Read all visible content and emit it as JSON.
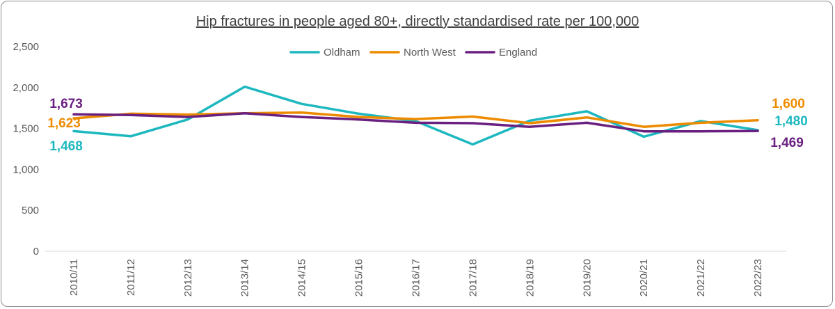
{
  "chart_data": {
    "type": "line",
    "title": "Hip fractures in people aged 80+, directly standardised rate per 100,000",
    "xlabel": "",
    "ylabel": "",
    "categories": [
      "2010/11",
      "2011/12",
      "2012/13",
      "2013/14",
      "2014/15",
      "2015/16",
      "2016/17",
      "2017/18",
      "2018/19",
      "2019/20",
      "2020/21",
      "2021/22",
      "2022/23"
    ],
    "ylim": [
      0,
      2500
    ],
    "y_ticks": [
      "0",
      "500",
      "1,000",
      "1,500",
      "2,000",
      "2,500"
    ],
    "grid": false,
    "legend_position": "top",
    "series": [
      {
        "name": "Oldham",
        "color": "#1db8bf",
        "values": [
          1468,
          1405,
          1610,
          2010,
          1800,
          1680,
          1590,
          1305,
          1595,
          1710,
          1400,
          1590,
          1480
        ]
      },
      {
        "name": "North West",
        "color": "#ed8b00",
        "values": [
          1623,
          1680,
          1670,
          1685,
          1695,
          1640,
          1615,
          1645,
          1565,
          1635,
          1520,
          1570,
          1600
        ]
      },
      {
        "name": "England",
        "color": "#6a2080",
        "values": [
          1673,
          1665,
          1640,
          1685,
          1640,
          1610,
          1570,
          1565,
          1520,
          1570,
          1465,
          1465,
          1469
        ]
      }
    ],
    "data_labels": {
      "first": [
        {
          "series": "England",
          "text": "1,673"
        },
        {
          "series": "North West",
          "text": "1,623"
        },
        {
          "series": "Oldham",
          "text": "1,468"
        }
      ],
      "last": [
        {
          "series": "North West",
          "text": "1,600"
        },
        {
          "series": "Oldham",
          "text": "1,480"
        },
        {
          "series": "England",
          "text": "1,469"
        }
      ]
    }
  }
}
